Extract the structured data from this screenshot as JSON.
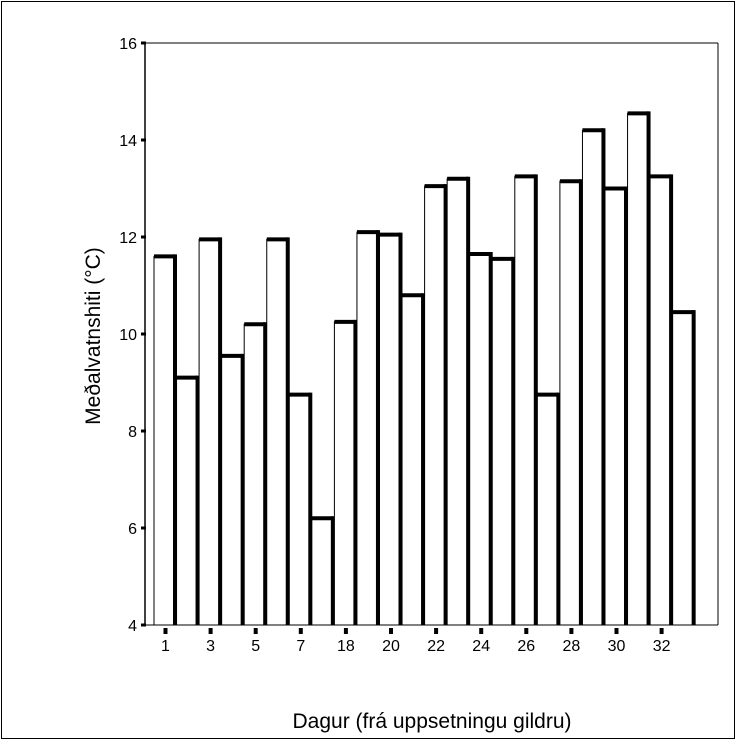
{
  "chart_data": {
    "type": "bar",
    "title": "",
    "xlabel": "Dagur (frá uppsetningu gildru)",
    "ylabel": "Meðalvatnshiti (°C)",
    "ylim": [
      4,
      16
    ],
    "yticks": [
      4,
      6,
      8,
      10,
      12,
      14,
      16
    ],
    "xtick_labels": [
      "1",
      "3",
      "5",
      "7",
      "18",
      "20",
      "22",
      "24",
      "26",
      "28",
      "30",
      "32"
    ],
    "values": [
      11.6,
      9.1,
      11.95,
      9.55,
      10.2,
      11.95,
      8.75,
      6.2,
      10.25,
      12.1,
      12.05,
      10.8,
      13.05,
      13.2,
      11.65,
      11.55,
      13.25,
      8.75,
      13.15,
      14.2,
      13.0,
      14.55,
      13.25,
      10.45
    ],
    "bar_color": "#ffffff",
    "edge_color": "#000000",
    "grid": false,
    "legend": "none"
  }
}
